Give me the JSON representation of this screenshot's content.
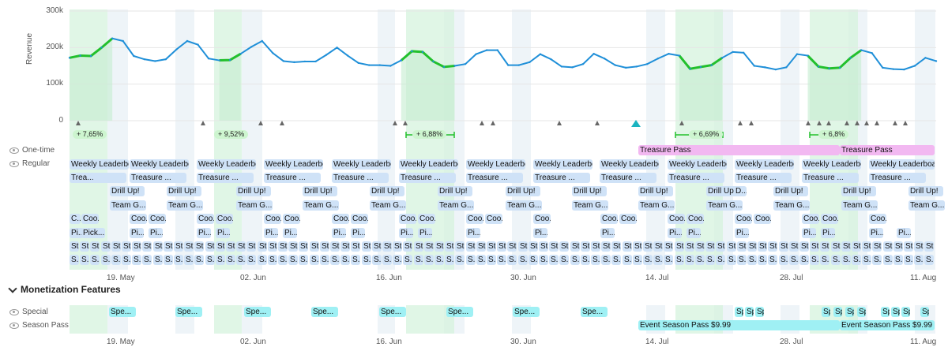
{
  "chart_data": {
    "type": "line",
    "ylabel": "Revenue",
    "yticks": [
      "300k",
      "200k",
      "100k",
      "0"
    ],
    "ylim": [
      0,
      300000
    ],
    "values": [
      172000,
      178000,
      177000,
      200000,
      225000,
      218000,
      177000,
      168000,
      163000,
      168000,
      195000,
      218000,
      208000,
      170000,
      165000,
      166000,
      183000,
      202000,
      218000,
      185000,
      163000,
      160000,
      162000,
      162000,
      180000,
      200000,
      178000,
      158000,
      152000,
      152000,
      150000,
      165000,
      190000,
      188000,
      162000,
      147000,
      150000,
      155000,
      182000,
      193000,
      193000,
      152000,
      152000,
      160000,
      182000,
      168000,
      148000,
      146000,
      155000,
      183000,
      170000,
      152000,
      145000,
      148000,
      155000,
      170000,
      183000,
      178000,
      142000,
      147000,
      152000,
      172000,
      188000,
      186000,
      150000,
      146000,
      140000,
      146000,
      182000,
      178000,
      148000,
      143000,
      145000,
      172000,
      193000,
      185000,
      145000,
      141000,
      140000,
      150000,
      172000,
      163000
    ],
    "highlights": [
      "+ 7,65%",
      "+ 9,52%",
      "+ 6,88%",
      "+ 6,69%",
      "+ 6,8%"
    ]
  },
  "rows": {
    "one_time": "One-time",
    "regular": "Regular",
    "special": "Special",
    "season_pass": "Season Pass"
  },
  "section_title": "Monetization Features",
  "xticks": [
    "19. May",
    "02. Jun",
    "16. Jun",
    "30. Jun",
    "14. Jul",
    "28. Jul",
    "11. Aug"
  ],
  "events": {
    "treasure_pass": "Treasure Pass",
    "weekly": "Weekly Leaderboard",
    "treasure_short": "Trea...",
    "treasure_mid": "Treasure ...",
    "drill": "Drill Up!",
    "drill_short": "D...",
    "team": "Team G...",
    "coop": "Coo...",
    "coop_short": "C...",
    "pi": "Pi...",
    "pick": "Pick...",
    "st": "St",
    "s": "S...",
    "special": "Spe...",
    "season_pass_event": "Event Season Pass $9.99"
  },
  "colors": {
    "line": "#1f8fd8",
    "highlight_line": "#22c02c",
    "highlight_fill": "#d6f3dd",
    "event_blue": "#cfe2f7",
    "treasure_pink": "#f2b8f1",
    "special_cyan": "#9ff0f4"
  }
}
